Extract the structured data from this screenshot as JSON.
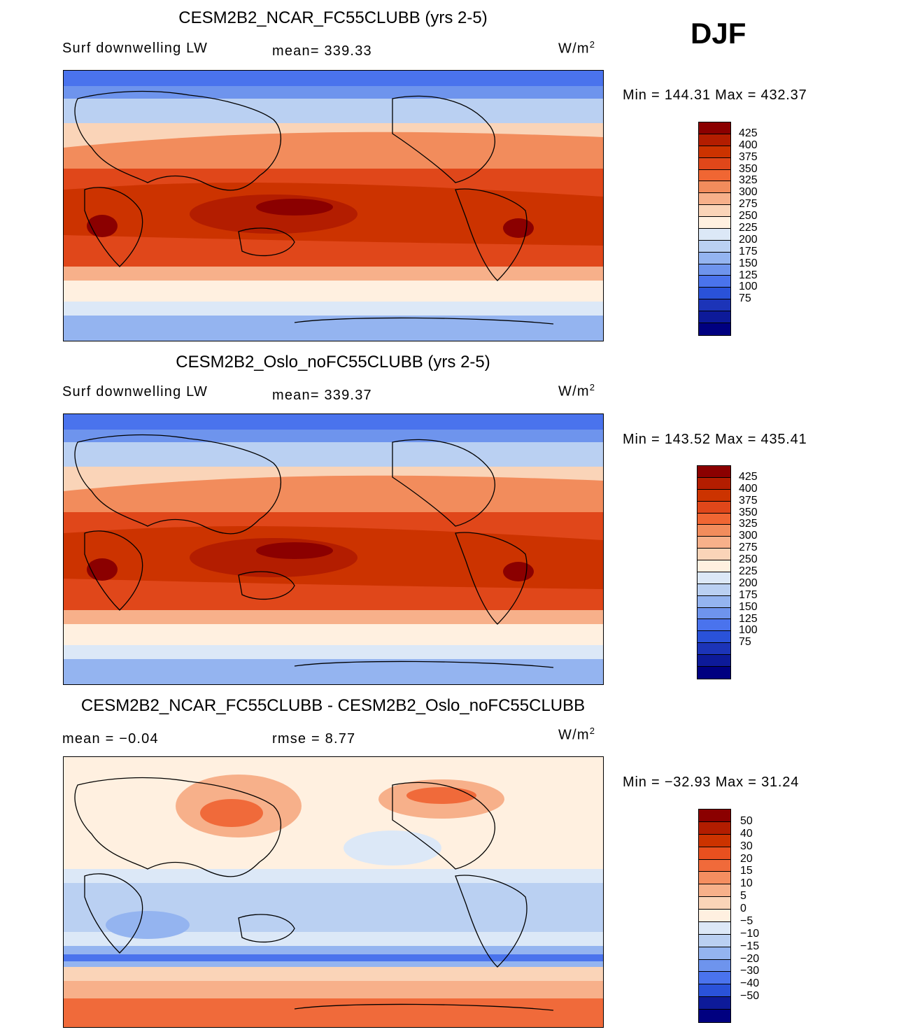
{
  "season": "DJF",
  "panels": [
    {
      "title": "CESM2B2_NCAR_FC55CLUBB (yrs 2-5)",
      "variable": "Surf downwelling LW",
      "stat1": "mean= 339.33",
      "stat2": "",
      "units": "W/m",
      "units_sup": "2",
      "minmax": "Min = 144.31 Max = 432.37",
      "min": 144.31,
      "max": 432.37,
      "colorbar": {
        "labels": [
          "425",
          "400",
          "375",
          "350",
          "325",
          "300",
          "275",
          "250",
          "225",
          "200",
          "175",
          "150",
          "125",
          "100",
          "75"
        ],
        "colors": [
          "#8b0000",
          "#b31d00",
          "#cc3300",
          "#e0471a",
          "#f06633",
          "#f28c5c",
          "#f7b08a",
          "#fad4b8",
          "#fff0e0",
          "#dce8f7",
          "#bad0f2",
          "#94b4f0",
          "#6e94ed",
          "#4a73ed",
          "#2a52d9",
          "#1c34b8",
          "#0d1a99",
          "#000080"
        ]
      }
    },
    {
      "title": "CESM2B2_Oslo_noFC55CLUBB (yrs 2-5)",
      "variable": "Surf downwelling LW",
      "stat1": "mean= 339.37",
      "stat2": "",
      "units": "W/m",
      "units_sup": "2",
      "minmax": "Min = 143.52 Max = 435.41",
      "min": 143.52,
      "max": 435.41,
      "colorbar": {
        "labels": [
          "425",
          "400",
          "375",
          "350",
          "325",
          "300",
          "275",
          "250",
          "225",
          "200",
          "175",
          "150",
          "125",
          "100",
          "75"
        ],
        "colors": [
          "#8b0000",
          "#b31d00",
          "#cc3300",
          "#e0471a",
          "#f06633",
          "#f28c5c",
          "#f7b08a",
          "#fad4b8",
          "#fff0e0",
          "#dce8f7",
          "#bad0f2",
          "#94b4f0",
          "#6e94ed",
          "#4a73ed",
          "#2a52d9",
          "#1c34b8",
          "#0d1a99",
          "#000080"
        ]
      }
    },
    {
      "title": "CESM2B2_NCAR_FC55CLUBB - CESM2B2_Oslo_noFC55CLUBB",
      "variable": "",
      "stat1": "mean =   −0.04",
      "stat2": "rmse =    8.77",
      "units": "W/m",
      "units_sup": "2",
      "minmax": "Min = −32.93 Max =  31.24",
      "min": -32.93,
      "max": 31.24,
      "colorbar": {
        "labels": [
          "50",
          "40",
          "30",
          "20",
          "15",
          "10",
          "5",
          "0",
          "−5",
          "−10",
          "−15",
          "−20",
          "−30",
          "−40",
          "−50"
        ],
        "colors": [
          "#8b0000",
          "#b31d00",
          "#cc3300",
          "#e8501f",
          "#f06a3a",
          "#f58e60",
          "#f7b08a",
          "#fad4b8",
          "#fff0e0",
          "#dce8f7",
          "#bad0f2",
          "#94b4f0",
          "#6e94ed",
          "#4a73ed",
          "#2a52d9",
          "#0d1a99",
          "#000080"
        ]
      }
    }
  ]
}
